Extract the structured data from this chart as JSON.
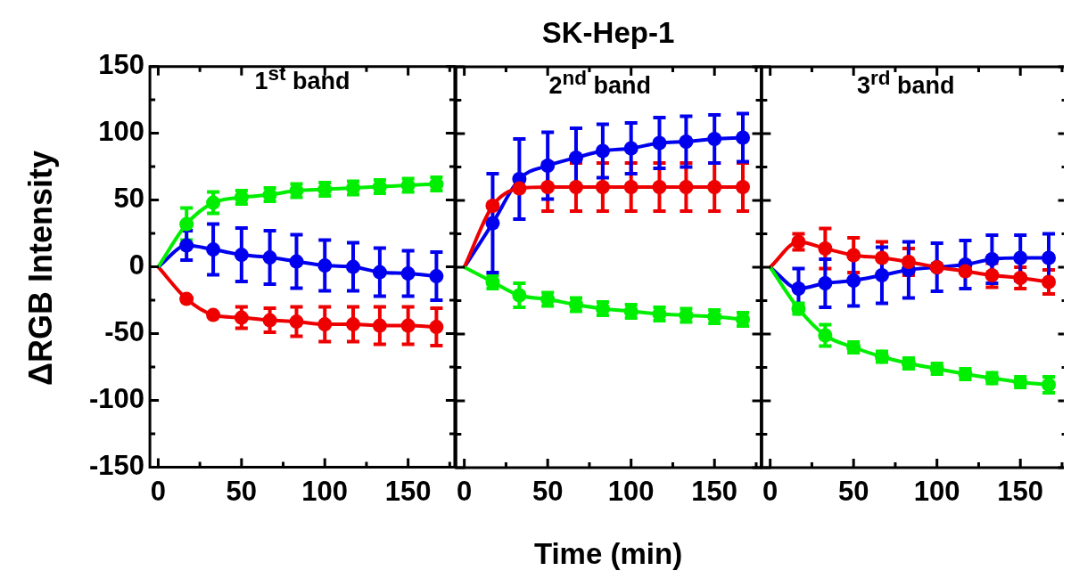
{
  "chart_data": [
    {
      "type": "line",
      "ylabel": "ΔRGB Intensity",
      "annotations": [
        "1$^{st}$ band"
      ],
      "x": [
        0,
        17,
        33,
        50,
        67,
        83,
        100,
        117,
        133,
        150,
        167
      ],
      "xlim": [
        -5,
        178
      ],
      "ylim": [
        -150,
        150
      ],
      "xticks": [
        0,
        {
          "value": 25,
          "label": null
        },
        50,
        {
          "value": 75,
          "label": null
        },
        100,
        {
          "value": 125,
          "label": null
        },
        150,
        {
          "value": 175,
          "label": null
        }
      ],
      "yticks": [
        -150,
        {
          "value": -125,
          "label": null
        },
        -100,
        {
          "value": -75,
          "label": null
        },
        -50,
        {
          "value": -25,
          "label": null
        },
        0,
        {
          "value": 25,
          "label": null
        },
        50,
        {
          "value": 75,
          "label": null
        },
        100,
        {
          "value": 125,
          "label": null
        },
        150
      ],
      "grid": false,
      "legend": false,
      "marker": "circle",
      "line_style": "solid",
      "series": [
        {
          "color": "#00ee00",
          "values": [
            0,
            32,
            48,
            52,
            54,
            57,
            58,
            59,
            60,
            61,
            62
          ],
          "errors": [
            null,
            12,
            8,
            5,
            5,
            5,
            5,
            5,
            5,
            5,
            5
          ]
        },
        {
          "color": "#0000ee",
          "values": [
            0,
            16,
            13,
            9,
            7,
            4,
            1,
            0,
            -4,
            -5,
            -7
          ],
          "errors": [
            null,
            11,
            19,
            20,
            20,
            20,
            19,
            18,
            18,
            17,
            18
          ]
        },
        {
          "color": "#ee0000",
          "values": [
            0,
            -24,
            -36,
            -38,
            -40,
            -41,
            -43,
            -43,
            -44,
            -44,
            -45
          ],
          "errors": [
            null,
            null,
            null,
            8,
            9,
            11,
            13,
            13,
            14,
            14,
            14
          ]
        }
      ]
    },
    {
      "type": "line",
      "title": "SK-Hep-1",
      "xlabel": "Time (min)",
      "annotations": [
        "2$^{nd}$ band"
      ],
      "x": [
        0,
        17,
        33,
        50,
        67,
        83,
        100,
        117,
        133,
        150,
        167
      ],
      "xlim": [
        -5,
        178
      ],
      "ylim": [
        -150,
        150
      ],
      "tick_labels": "x",
      "xticks": [
        0,
        {
          "value": 25,
          "label": null
        },
        50,
        {
          "value": 75,
          "label": null
        },
        100,
        {
          "value": 125,
          "label": null
        },
        150,
        {
          "value": 175,
          "label": null
        }
      ],
      "yticks": [
        -150,
        {
          "value": -125,
          "label": null
        },
        -100,
        {
          "value": -75,
          "label": null
        },
        -50,
        {
          "value": -25,
          "label": null
        },
        0,
        {
          "value": 25,
          "label": null
        },
        50,
        {
          "value": 75,
          "label": null
        },
        100,
        {
          "value": 125,
          "label": null
        },
        150
      ],
      "grid": false,
      "legend": false,
      "marker": "circle",
      "line_style": "solid",
      "series": [
        {
          "color": "#00ee00",
          "values": [
            0,
            -11,
            -21,
            -24,
            -28,
            -31,
            -33,
            -35,
            -36,
            -37,
            -39
          ],
          "errors": [
            null,
            5,
            9,
            5,
            5,
            5,
            5,
            5,
            5,
            5,
            5
          ]
        },
        {
          "color": "#ee0000",
          "values": [
            0,
            46,
            59,
            60,
            60,
            60,
            60,
            60,
            60,
            60,
            60
          ],
          "errors": [
            null,
            null,
            null,
            18,
            18,
            18,
            18,
            18,
            18,
            18,
            18
          ]
        },
        {
          "color": "#0000ee",
          "values": [
            0,
            33,
            66,
            76,
            82,
            87,
            89,
            93,
            94,
            96,
            97
          ],
          "errors": [
            null,
            37,
            30,
            25,
            22,
            20,
            19,
            19,
            19,
            18,
            18
          ]
        }
      ]
    },
    {
      "type": "line",
      "annotations": [
        "3$^{rd}$ band"
      ],
      "x": [
        0,
        17,
        33,
        50,
        67,
        83,
        100,
        117,
        133,
        150,
        167
      ],
      "xlim": [
        -5,
        178
      ],
      "ylim": [
        -150,
        150
      ],
      "tick_labels": "x",
      "xticks": [
        0,
        {
          "value": 25,
          "label": null
        },
        50,
        {
          "value": 75,
          "label": null
        },
        100,
        {
          "value": 125,
          "label": null
        },
        150,
        {
          "value": 175,
          "label": null
        }
      ],
      "yticks": [
        -150,
        {
          "value": -125,
          "label": null
        },
        -100,
        {
          "value": -75,
          "label": null
        },
        -50,
        {
          "value": -25,
          "label": null
        },
        0,
        {
          "value": 25,
          "label": null
        },
        50,
        {
          "value": 75,
          "label": null
        },
        100,
        {
          "value": 125,
          "label": null
        },
        150
      ],
      "grid": false,
      "legend": false,
      "marker": "circle",
      "line_style": "solid",
      "series": [
        {
          "color": "#00ee00",
          "values": [
            0,
            -31,
            -51,
            -60,
            -67,
            -72,
            -76,
            -80,
            -83,
            -86,
            -88
          ],
          "errors": [
            null,
            4,
            8,
            4,
            4,
            4,
            4,
            4,
            4,
            4,
            6
          ]
        },
        {
          "color": "#ee0000",
          "values": [
            0,
            19,
            14,
            9,
            7,
            4,
            0,
            -3,
            -6,
            -8,
            -11
          ],
          "errors": [
            null,
            6,
            15,
            13,
            12,
            10,
            null,
            null,
            9,
            8,
            9
          ]
        },
        {
          "color": "#0000ee",
          "values": [
            0,
            -16,
            -12,
            -10,
            -6,
            -2,
            0,
            2,
            6,
            7,
            7
          ],
          "errors": [
            null,
            15,
            18,
            19,
            21,
            21,
            18,
            18,
            18,
            17,
            18
          ]
        }
      ]
    }
  ]
}
